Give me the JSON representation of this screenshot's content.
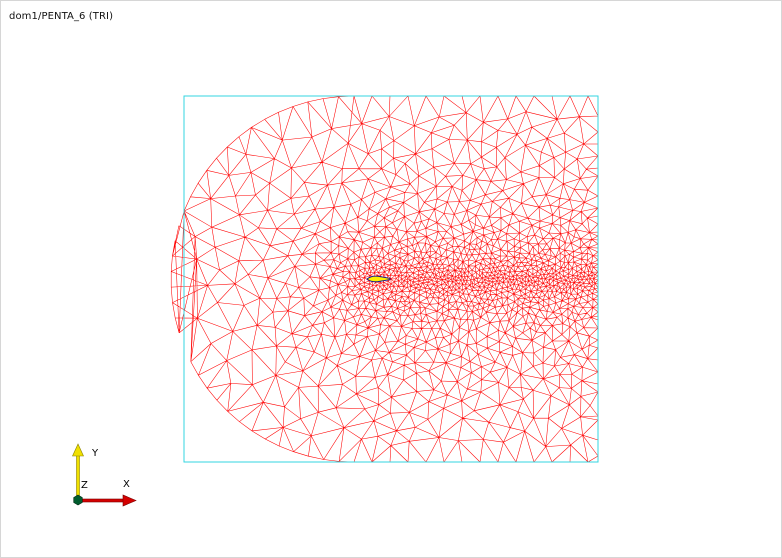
{
  "title": "dom1/PENTA_6 (TRI)",
  "colors": {
    "background": "#ffffff",
    "mesh": "#ff0000",
    "boundary": "#33d6e0",
    "axis_y": "#f0e000",
    "axis_x": "#d40000",
    "origin": "#005c2e",
    "airfoil_fill": "#fff000",
    "airfoil_edge": "#1a1a8c"
  },
  "triad": {
    "x_label": "X",
    "y_label": "Y",
    "z_label": "Z",
    "origin_icon": "origin-node-icon",
    "x_arrow_icon": "x-axis-arrow-icon",
    "y_arrow_icon": "y-axis-arrow-icon"
  }
}
